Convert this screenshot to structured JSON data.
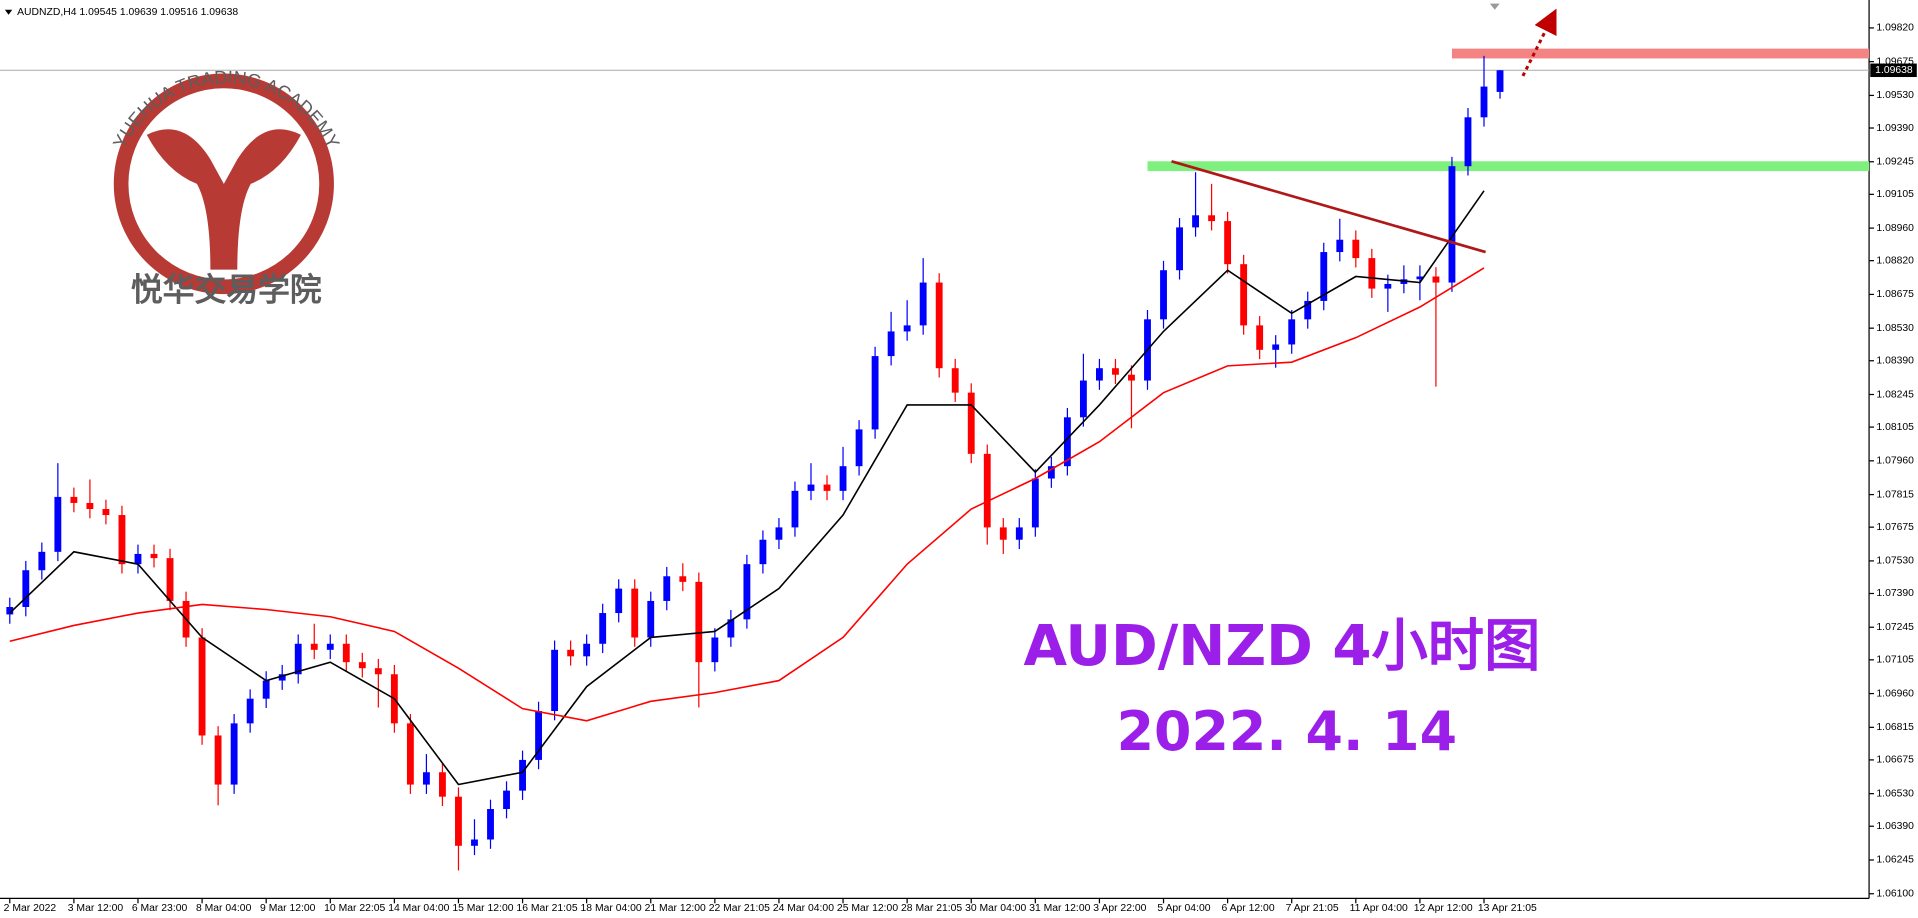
{
  "chart_data": {
    "type": "candlestick",
    "header": "AUDNZD,H4 1.09545 1.09639 1.09516 1.09638",
    "title": "AUD/NZD 4小时图",
    "subtitle": "2022. 4. 14",
    "current_price_label": "1.09638",
    "up_color": "#0000ff",
    "down_color": "#ff0000",
    "categories": [
      "2 Mar 2022",
      null,
      null,
      null,
      "3 Mar 12:00",
      null,
      null,
      null,
      "6 Mar 23:00",
      null,
      null,
      null,
      "8 Mar 04:00",
      null,
      null,
      null,
      "9 Mar 12:00",
      null,
      null,
      null,
      "10 Mar 22:05",
      null,
      null,
      null,
      "14 Mar 04:00",
      null,
      null,
      null,
      "15 Mar 12:00",
      null,
      null,
      null,
      "16 Mar 21:05",
      null,
      null,
      null,
      "18 Mar 04:00",
      null,
      null,
      null,
      "21 Mar 12:00",
      null,
      null,
      null,
      "22 Mar 21:05",
      null,
      null,
      null,
      "24 Mar 04:00",
      null,
      null,
      null,
      "25 Mar 12:00",
      null,
      null,
      null,
      "28 Mar 21:05",
      null,
      null,
      null,
      "30 Mar 04:00",
      null,
      null,
      null,
      "31 Mar 12:00",
      null,
      null,
      null,
      "3 Apr 22:00",
      null,
      null,
      null,
      "5 Apr 04:00",
      null,
      null,
      null,
      "6 Apr 12:00",
      null,
      null,
      null,
      "7 Apr 21:05",
      null,
      null,
      null,
      "11 Apr 04:00",
      null,
      null,
      null,
      "12 Apr 12:00",
      null,
      null,
      null,
      "13 Apr 21:05",
      null
    ],
    "open": [
      1.073,
      1.07332,
      1.0749,
      1.07569,
      1.07805,
      1.07779,
      1.07753,
      1.07727,
      1.07516,
      1.0756,
      1.07542,
      1.07358,
      1.07201,
      1.0678,
      1.06569,
      1.06832,
      1.06938,
      1.07016,
      1.07043,
      1.07174,
      1.07148,
      1.07174,
      1.07095,
      1.07069,
      1.07043,
      1.06832,
      1.06569,
      1.06622,
      1.06517,
      1.06306,
      1.06333,
      1.06464,
      1.06543,
      1.06675,
      1.06885,
      1.07148,
      1.0712,
      1.07174,
      1.07306,
      1.07411,
      1.07201,
      1.07358,
      1.07464,
      1.0744,
      1.07095,
      1.07201,
      1.07279,
      1.07516,
      1.07621,
      1.07674,
      1.07831,
      1.07858,
      1.07831,
      1.07937,
      1.08095,
      1.0841,
      1.08516,
      1.08542,
      1.08726,
      1.08358,
      1.08253,
      1.0799,
      1.07674,
      1.07621,
      1.07674,
      1.07884,
      1.07937,
      1.08147,
      1.08305,
      1.08358,
      1.0833,
      1.08305,
      1.08568,
      1.08779,
      1.08963,
      1.09015,
      1.0899,
      1.08805,
      1.08542,
      1.08437,
      1.0846,
      1.08568,
      1.08647,
      1.08857,
      1.0891,
      1.08831,
      1.087,
      1.0872,
      1.0874,
      1.08752,
      1.08726,
      1.09226,
      1.09436,
      1.09545
    ],
    "high": [
      1.07372,
      1.0753,
      1.07609,
      1.0795,
      1.07845,
      1.0788,
      1.07793,
      1.07767,
      1.076,
      1.076,
      1.07582,
      1.07398,
      1.07241,
      1.0682,
      1.06872,
      1.06978,
      1.07056,
      1.07083,
      1.07214,
      1.0726,
      1.07214,
      1.07214,
      1.07135,
      1.07109,
      1.07083,
      1.06872,
      1.067,
      1.06662,
      1.06557,
      1.0642,
      1.06504,
      1.06583,
      1.06715,
      1.06925,
      1.07188,
      1.07188,
      1.07214,
      1.07346,
      1.07451,
      1.07451,
      1.07398,
      1.07504,
      1.0752,
      1.0748,
      1.07241,
      1.07319,
      1.07556,
      1.07661,
      1.07714,
      1.07871,
      1.0795,
      1.07898,
      1.0802,
      1.08135,
      1.0845,
      1.086,
      1.0865,
      1.08831,
      1.08766,
      1.08398,
      1.08293,
      1.0803,
      1.07714,
      1.07714,
      1.07924,
      1.07977,
      1.08187,
      1.0842,
      1.08398,
      1.08398,
      1.0837,
      1.08608,
      1.08819,
      1.09003,
      1.092,
      1.0915,
      1.0903,
      1.08845,
      1.08582,
      1.085,
      1.08608,
      1.08687,
      1.08897,
      1.09,
      1.0895,
      1.08871,
      1.0876,
      1.088,
      1.088,
      1.08792,
      1.09266,
      1.09476,
      1.097,
      1.09639
    ],
    "low": [
      1.0726,
      1.07292,
      1.0745,
      1.07529,
      1.07739,
      1.07713,
      1.07687,
      1.07476,
      1.07476,
      1.07502,
      1.07318,
      1.07161,
      1.0674,
      1.0648,
      1.06529,
      1.06792,
      1.06898,
      1.06976,
      1.07003,
      1.07108,
      1.07108,
      1.07055,
      1.07029,
      1.069,
      1.06792,
      1.06529,
      1.06529,
      1.06477,
      1.062,
      1.06266,
      1.06293,
      1.06424,
      1.06503,
      1.06635,
      1.06845,
      1.0708,
      1.0708,
      1.07134,
      1.07266,
      1.07161,
      1.07161,
      1.07318,
      1.074,
      1.069,
      1.07055,
      1.07161,
      1.07239,
      1.07476,
      1.07581,
      1.07634,
      1.07791,
      1.07791,
      1.07791,
      1.07897,
      1.08055,
      1.0837,
      1.08476,
      1.08502,
      1.08318,
      1.08213,
      1.0795,
      1.076,
      1.0756,
      1.07581,
      1.07634,
      1.07844,
      1.07897,
      1.08107,
      1.08265,
      1.0829,
      1.081,
      1.08265,
      1.08528,
      1.08739,
      1.08923,
      1.0895,
      1.08765,
      1.08502,
      1.08397,
      1.0836,
      1.0842,
      1.08528,
      1.08607,
      1.08817,
      1.08791,
      1.0866,
      1.086,
      1.0868,
      1.0865,
      1.08279,
      1.08686,
      1.09186,
      1.09396,
      1.09516
    ],
    "close": [
      1.07332,
      1.0749,
      1.07569,
      1.07805,
      1.07779,
      1.07753,
      1.07727,
      1.07516,
      1.0756,
      1.07542,
      1.07358,
      1.07201,
      1.0678,
      1.06569,
      1.06832,
      1.06938,
      1.07016,
      1.07043,
      1.07174,
      1.07148,
      1.07174,
      1.07095,
      1.07069,
      1.07043,
      1.06832,
      1.06569,
      1.06622,
      1.06517,
      1.06306,
      1.06333,
      1.06464,
      1.06543,
      1.06675,
      1.06885,
      1.07148,
      1.0712,
      1.07174,
      1.07306,
      1.07411,
      1.07201,
      1.07358,
      1.07464,
      1.0744,
      1.07095,
      1.07201,
      1.07279,
      1.07516,
      1.07621,
      1.07674,
      1.07831,
      1.07858,
      1.07831,
      1.07937,
      1.08095,
      1.0841,
      1.08516,
      1.08542,
      1.08726,
      1.08358,
      1.08253,
      1.0799,
      1.07674,
      1.07621,
      1.07674,
      1.07884,
      1.07937,
      1.08147,
      1.08305,
      1.08358,
      1.0833,
      1.08305,
      1.08568,
      1.08779,
      1.08963,
      1.09015,
      1.0899,
      1.08805,
      1.08542,
      1.08437,
      1.0846,
      1.08568,
      1.08647,
      1.08857,
      1.0891,
      1.08831,
      1.087,
      1.0872,
      1.0874,
      1.08752,
      1.08726,
      1.09226,
      1.09436,
      1.09568,
      1.09638
    ],
    "overlays": [
      {
        "color": "#000000",
        "x": [
          0,
          4,
          8,
          12,
          16,
          20,
          24,
          28,
          32,
          36,
          40,
          44,
          48,
          52,
          56,
          60,
          64,
          68,
          72,
          76,
          80,
          84,
          88,
          92
        ],
        "values": [
          1.07306,
          1.07569,
          1.07516,
          1.07201,
          1.07016,
          1.07095,
          1.06938,
          1.06569,
          1.06622,
          1.0699,
          1.07201,
          1.07227,
          1.07411,
          1.07727,
          1.082,
          1.082,
          1.07911,
          1.082,
          1.08516,
          1.08779,
          1.08594,
          1.08752,
          1.08726,
          1.0912
        ]
      },
      {
        "color": "#ff0000",
        "x": [
          0,
          4,
          8,
          12,
          16,
          20,
          24,
          28,
          32,
          36,
          40,
          44,
          48,
          52,
          56,
          60,
          64,
          68,
          72,
          76,
          80,
          84,
          88,
          92
        ],
        "values": [
          1.07185,
          1.07253,
          1.07306,
          1.07343,
          1.07321,
          1.0729,
          1.07227,
          1.07069,
          1.06895,
          1.06843,
          1.06927,
          1.06964,
          1.07016,
          1.07201,
          1.07516,
          1.07753,
          1.07884,
          1.08042,
          1.08253,
          1.08368,
          1.08384,
          1.08489,
          1.08621,
          1.08789
        ]
      }
    ],
    "levels": [
      {
        "color": "#f48484",
        "x": 90,
        "value": 1.0971
      },
      {
        "color": "#7ef07e",
        "x": 71,
        "value": 1.09226
      }
    ],
    "trendline": {
      "color": "#b01818",
      "x": [
        72.5,
        92.1
      ],
      "values": [
        1.09247,
        1.08857
      ]
    },
    "ylim": [
      1.0608,
      1.0994
    ],
    "yticks": [
      {
        "value": 1.0982,
        "label": "1.09820"
      },
      1.09675,
      {
        "value": 1.0953,
        "label": "1.09530"
      },
      {
        "value": 1.0939,
        "label": "1.09390"
      },
      1.09245,
      1.09105,
      {
        "value": 1.0896,
        "label": "1.08960"
      },
      {
        "value": 1.0882,
        "label": "1.08820"
      },
      1.08675,
      {
        "value": 1.0853,
        "label": "1.08530"
      },
      {
        "value": 1.0839,
        "label": "1.08390"
      },
      1.08245,
      1.08105,
      {
        "value": 1.0796,
        "label": "1.07960"
      },
      1.07815,
      1.07675,
      {
        "value": 1.0753,
        "label": "1.07530"
      },
      {
        "value": 1.0739,
        "label": "1.07390"
      },
      1.07245,
      1.07105,
      {
        "value": 1.0696,
        "label": "1.06960"
      },
      1.06815,
      1.06675,
      {
        "value": 1.0653,
        "label": "1.06530"
      },
      {
        "value": 1.0639,
        "label": "1.06390"
      },
      1.06245,
      {
        "value": 1.061,
        "label": "1.06100"
      }
    ],
    "grid": false
  },
  "watermark": {
    "arc_text": "YUEHUA TRADING ACADEMY",
    "name": "悦华交易学院"
  }
}
